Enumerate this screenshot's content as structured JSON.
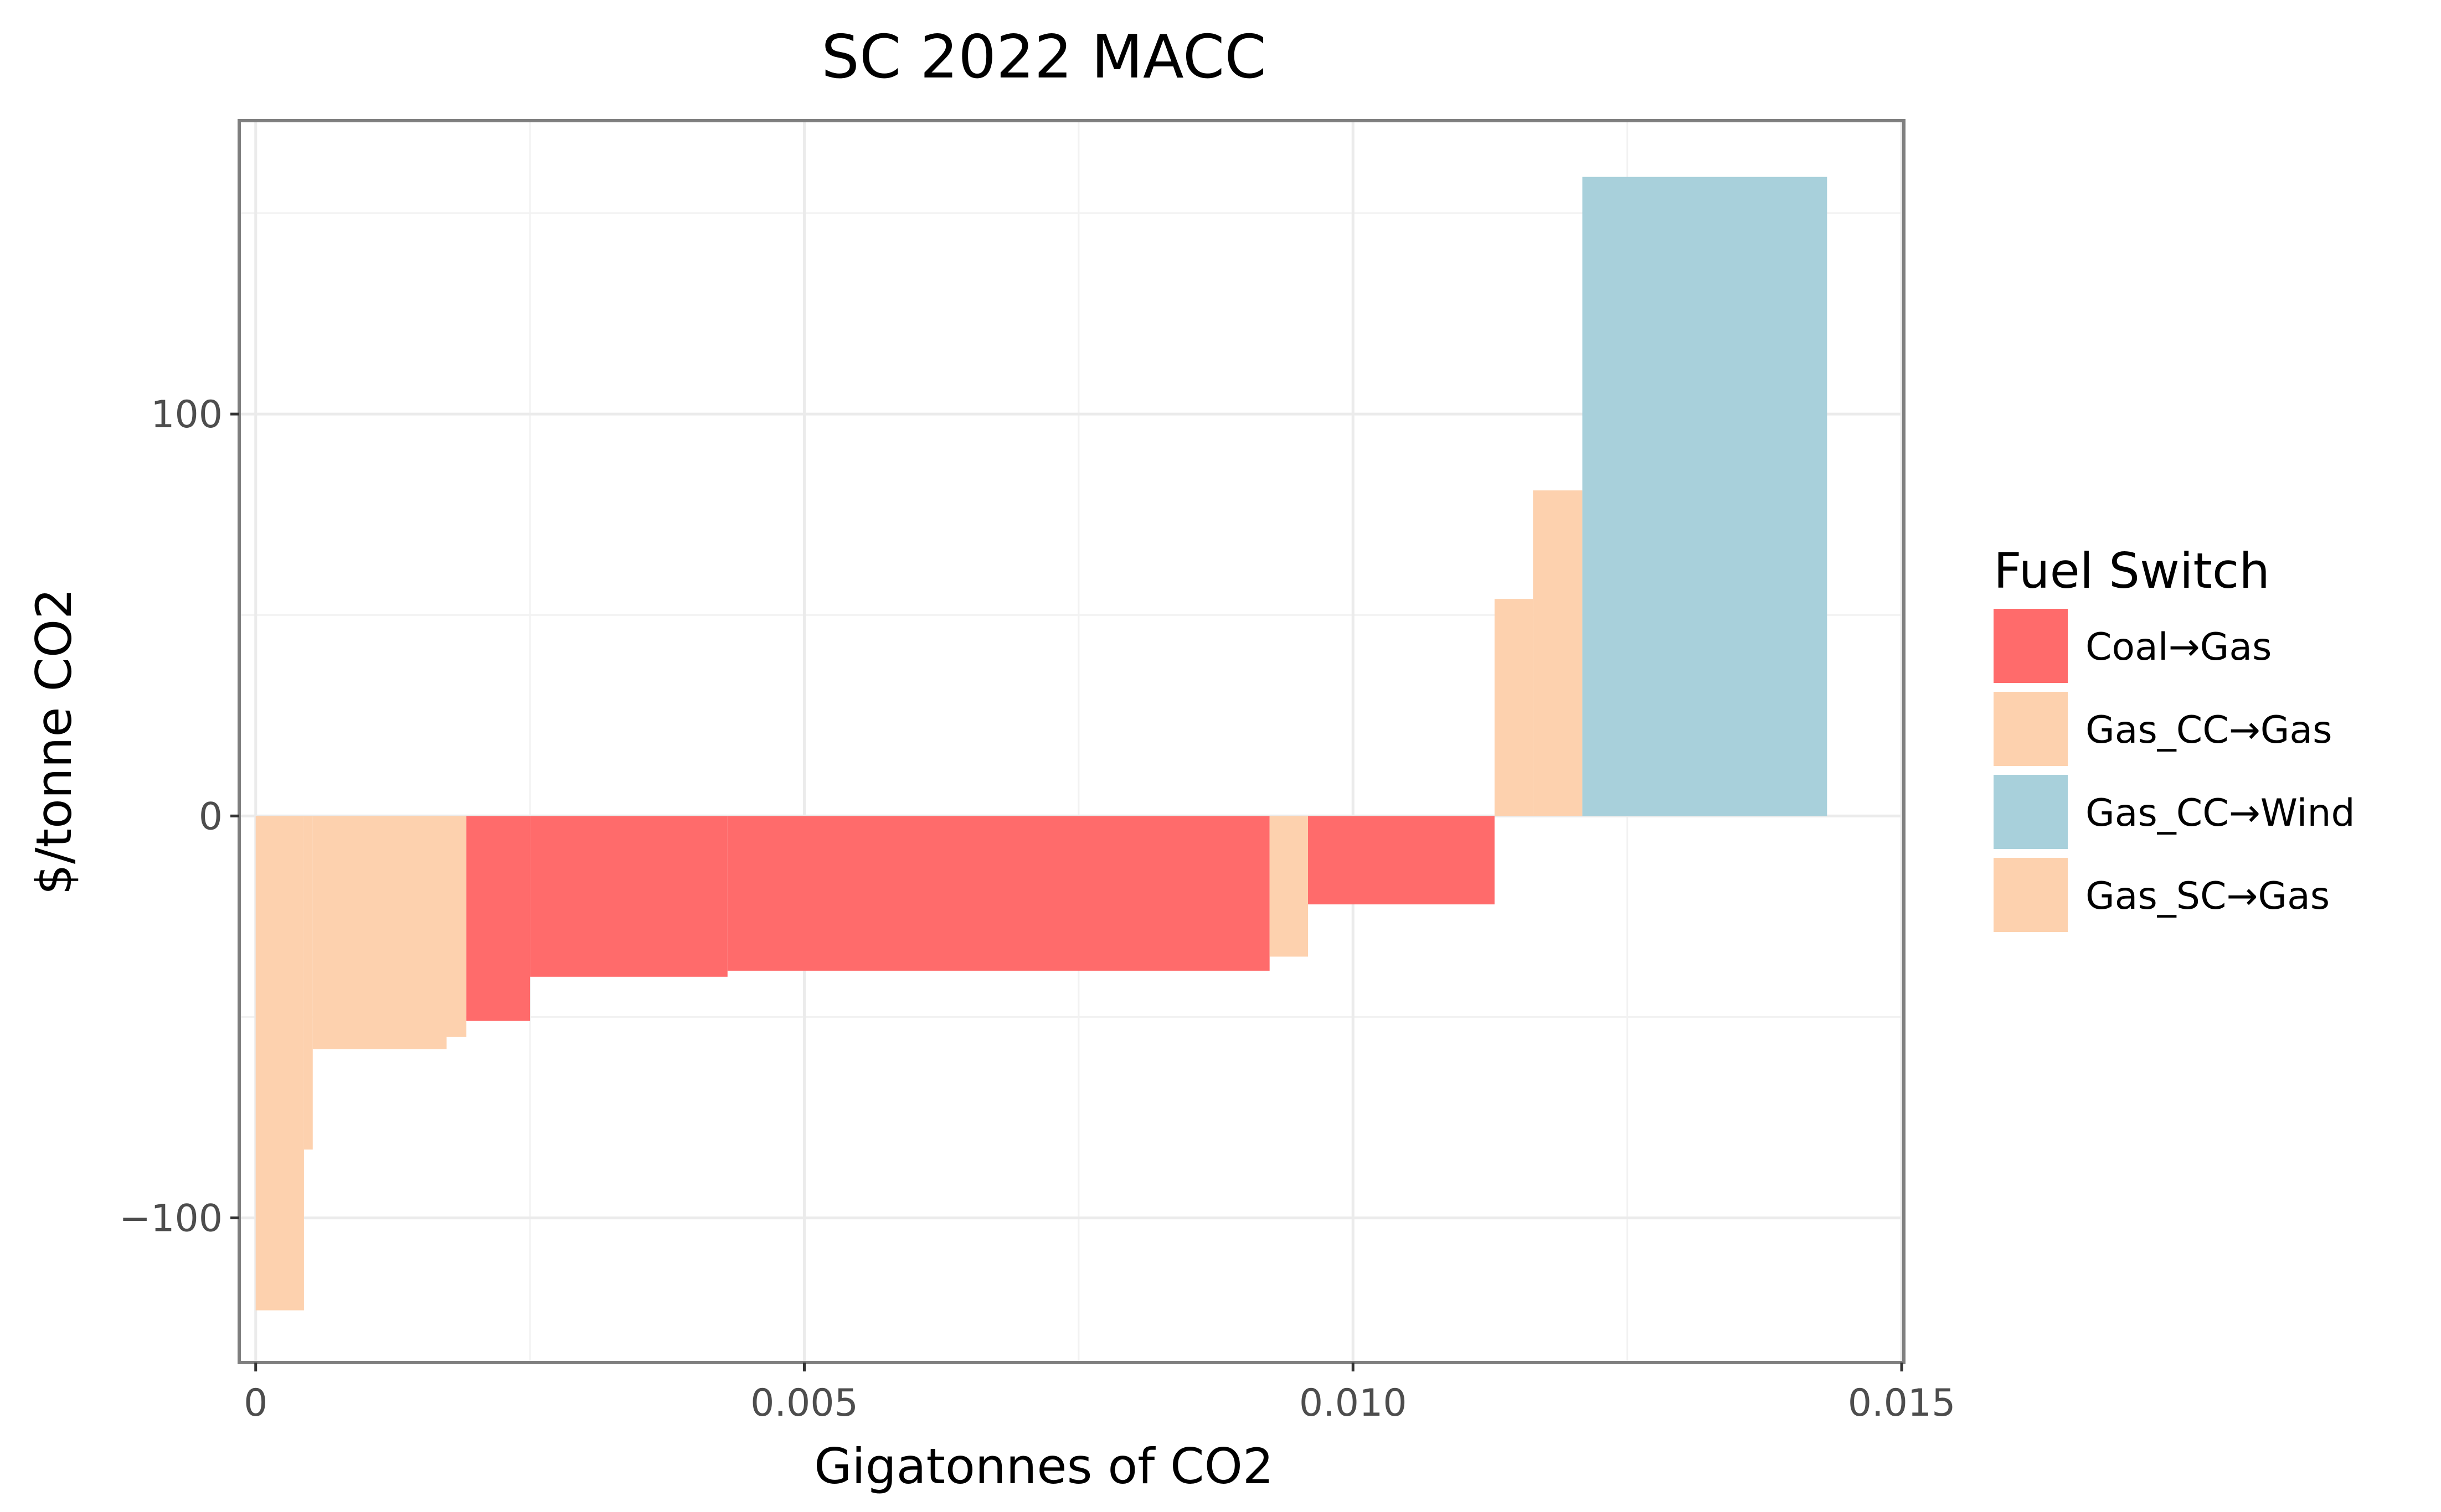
{
  "chart_data": {
    "type": "bar",
    "title": "SC 2022 MACC",
    "xlabel": "Gigatonnes of CO2",
    "ylabel": "$/tonne CO2",
    "xlim": [
      -0.00015,
      0.01502
    ],
    "ylim": [
      -136,
      173
    ],
    "xticks": [
      0,
      0.005,
      0.01,
      0.015
    ],
    "xtick_labels": [
      "0",
      "0.005",
      "0.010",
      "0.015"
    ],
    "yticks": [
      -100,
      0,
      100
    ],
    "ytick_labels": [
      "−100",
      "0",
      "100"
    ],
    "grid": true,
    "legend": {
      "title": "Fuel Switch",
      "placement": "right",
      "entries": [
        {
          "label": "Coal→Gas",
          "color": "#ff6b6b"
        },
        {
          "label": "Gas_CC→Gas",
          "color": "#fdd1ae"
        },
        {
          "label": "Gas_CC→Wind",
          "color": "#a8d0db"
        },
        {
          "label": "Gas_SC→Gas",
          "color": "#fdd1ae"
        }
      ]
    },
    "bars": [
      {
        "category": "Gas_SC→Gas",
        "x0": 0.0,
        "x1": 0.00044,
        "value": -123
      },
      {
        "category": "Gas_SC→Gas",
        "x0": 0.00044,
        "x1": 0.00052,
        "value": -83
      },
      {
        "category": "Gas_SC→Gas",
        "x0": 0.00052,
        "x1": 0.00174,
        "value": -58
      },
      {
        "category": "Gas_SC→Gas",
        "x0": 0.00174,
        "x1": 0.00192,
        "value": -55
      },
      {
        "category": "Coal→Gas",
        "x0": 0.00192,
        "x1": 0.0025,
        "value": -51
      },
      {
        "category": "Coal→Gas",
        "x0": 0.0025,
        "x1": 0.0043,
        "value": -40
      },
      {
        "category": "Coal→Gas",
        "x0": 0.0043,
        "x1": 0.00924,
        "value": -38.5
      },
      {
        "category": "Gas_CC→Gas",
        "x0": 0.00924,
        "x1": 0.00959,
        "value": -35
      },
      {
        "category": "Coal→Gas",
        "x0": 0.00959,
        "x1": 0.01129,
        "value": -22
      },
      {
        "category": "Gas_CC→Gas",
        "x0": 0.01129,
        "x1": 0.01164,
        "value": 54
      },
      {
        "category": "Gas_CC→Gas",
        "x0": 0.01164,
        "x1": 0.01209,
        "value": 81
      },
      {
        "category": "Gas_CC→Wind",
        "x0": 0.01209,
        "x1": 0.01432,
        "value": 159
      }
    ]
  }
}
